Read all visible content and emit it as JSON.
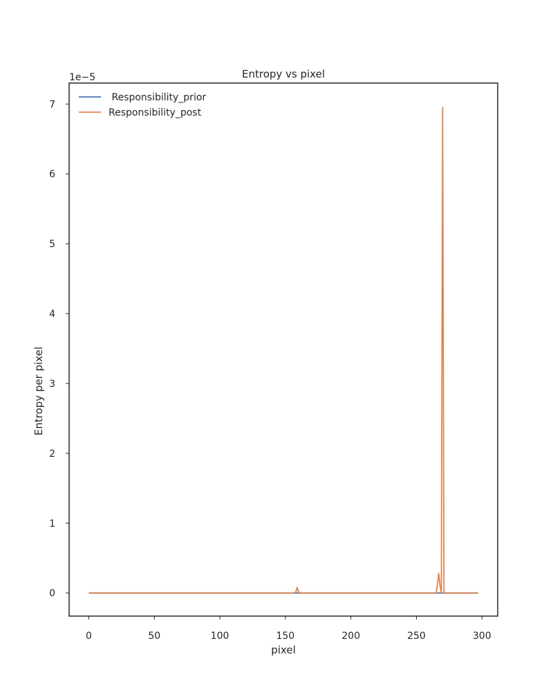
{
  "chart_data": {
    "type": "line",
    "title": "Entropy vs pixel",
    "xlabel": "pixel",
    "ylabel": "Entropy per pixel",
    "y_offset_label": "1e−5",
    "y_scale_factor": 1e-05,
    "xlim": [
      -15,
      312
    ],
    "ylim": [
      -3.3e-06,
      7.3e-05
    ],
    "x_ticks": [
      0,
      50,
      100,
      150,
      200,
      250,
      300
    ],
    "y_ticks": [
      0,
      1,
      2,
      3,
      4,
      5,
      6,
      7
    ],
    "y_ticks_values": [
      0,
      1e-05,
      2e-05,
      3e-05,
      4e-05,
      5e-05,
      6e-05,
      7e-05
    ],
    "grid": false,
    "legend_position": "top-left",
    "series": [
      {
        "name": " Responsibility_prior",
        "color": "#4c72b0",
        "x": [
          0,
          297
        ],
        "y": [
          0,
          0
        ]
      },
      {
        "name": "Responsibility_post",
        "color": "#dd8452",
        "x": [
          0,
          157,
          158,
          159,
          160,
          161,
          162,
          265,
          266,
          267,
          268,
          269,
          270,
          271,
          272,
          273,
          297
        ],
        "y": [
          0,
          0,
          2e-07,
          8e-07,
          2e-07,
          0,
          0,
          0,
          1.2e-06,
          2.8e-06,
          1e-06,
          0,
          6.95e-05,
          0,
          0,
          0,
          0
        ]
      }
    ]
  }
}
